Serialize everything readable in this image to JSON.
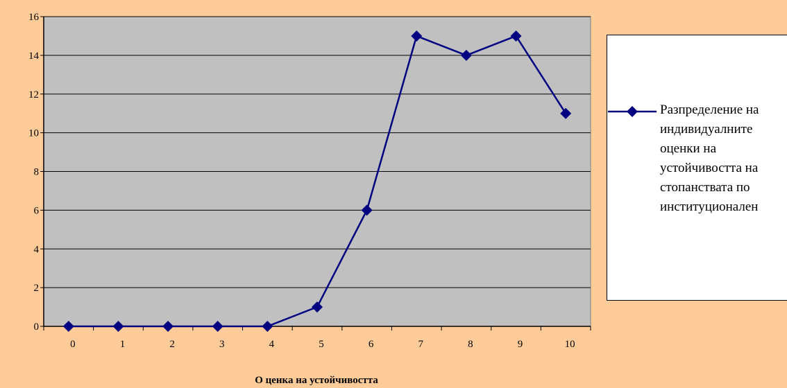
{
  "chart_data": {
    "type": "line",
    "title": "",
    "xlabel": "О ценка на устойчивостта",
    "ylabel": "",
    "x": [
      0,
      1,
      2,
      3,
      4,
      5,
      6,
      7,
      8,
      9,
      10
    ],
    "series": [
      {
        "name": "Разпределение на индивидуалните оценки на устойчивостта на стопанствата по институционален",
        "values": [
          0,
          0,
          0,
          0,
          0,
          1,
          6,
          15,
          14,
          15,
          11
        ]
      }
    ],
    "ylim": [
      0,
      16
    ],
    "yticks": [
      0,
      2,
      4,
      6,
      8,
      10,
      12,
      14,
      16
    ],
    "grid": true,
    "legend": "right",
    "colors": {
      "plot_background": "#C0C0C0",
      "page_background": "#FFCC99",
      "series": "#000080",
      "gridline": "#000000"
    }
  }
}
